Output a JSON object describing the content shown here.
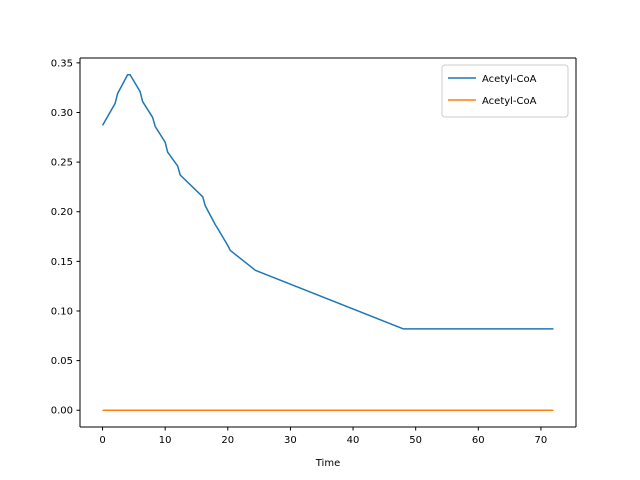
{
  "chart_data": {
    "type": "line",
    "title": "",
    "xlabel": "Time",
    "ylabel": "",
    "xlim": [
      -3.6,
      75.6
    ],
    "ylim": [
      -0.0169,
      0.3549
    ],
    "xticks": [
      0,
      10,
      20,
      30,
      40,
      50,
      60,
      70
    ],
    "xtick_labels": [
      "0",
      "10",
      "20",
      "30",
      "40",
      "50",
      "60",
      "70"
    ],
    "yticks": [
      0.0,
      0.05,
      0.1,
      0.15,
      0.2,
      0.25,
      0.3,
      0.35
    ],
    "ytick_labels": [
      "0.00",
      "0.05",
      "0.10",
      "0.15",
      "0.20",
      "0.25",
      "0.30",
      "0.35"
    ],
    "grid": false,
    "legend_position": "top-right",
    "series": [
      {
        "name": "Acetyl-CoA",
        "color": "#1f77b4",
        "x": [
          0,
          2,
          2.4,
          4,
          4.4,
          6,
          6.4,
          8,
          8.4,
          10,
          10.4,
          12,
          12.4,
          16,
          16.4,
          18,
          18.4,
          20,
          20.4,
          24,
          24.4,
          48,
          72
        ],
        "y": [
          0.287,
          0.309,
          0.319,
          0.338,
          0.338,
          0.321,
          0.311,
          0.295,
          0.286,
          0.27,
          0.26,
          0.246,
          0.237,
          0.215,
          0.206,
          0.187,
          0.183,
          0.166,
          0.161,
          0.143,
          0.141,
          0.082,
          0.082
        ]
      },
      {
        "name": "Acetyl-CoA",
        "color": "#ff7f0e",
        "x": [
          0,
          72
        ],
        "y": [
          0.0,
          0.0
        ]
      }
    ]
  }
}
